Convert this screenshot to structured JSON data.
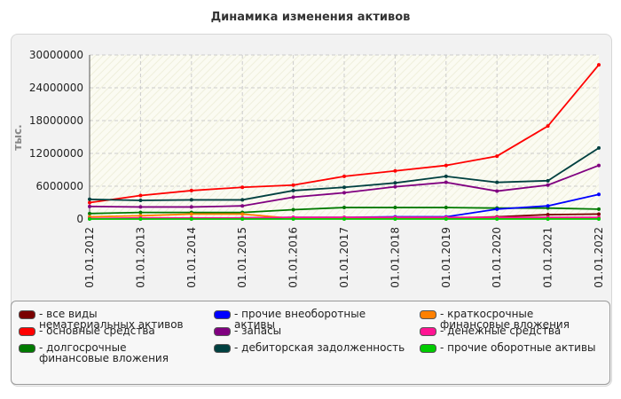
{
  "chart_data": {
    "type": "line",
    "title": "Динамика изменения активов",
    "ylabel": "тыс.",
    "xlabel": "",
    "ylim": [
      0,
      30000000
    ],
    "yticks": [
      "30000000",
      "24000000",
      "18000000",
      "12000000",
      "6000000",
      "0"
    ],
    "ytick_values": [
      30000000,
      24000000,
      18000000,
      12000000,
      6000000,
      0
    ],
    "categories": [
      "01.01.2012",
      "01.01.2013",
      "01.01.2014",
      "01.01.2015",
      "01.01.2016",
      "01.01.2017",
      "01.01.2018",
      "01.01.2019",
      "01.01.2020",
      "01.01.2021",
      "01.01.2022"
    ],
    "grid": true,
    "legend_position": "bottom",
    "series": [
      {
        "name": "все виды нематериальных активов",
        "color": "#7a0000",
        "values": [
          50000,
          50000,
          50000,
          50000,
          60000,
          60000,
          80000,
          150000,
          400000,
          800000,
          900000
        ]
      },
      {
        "name": "основные средства",
        "color": "#ff0000",
        "values": [
          3000000,
          4300000,
          5200000,
          5800000,
          6200000,
          7800000,
          8800000,
          9800000,
          11500000,
          17000000,
          28200000
        ]
      },
      {
        "name": "долгосрочные финансовые вложения",
        "color": "#007a00",
        "values": [
          1000000,
          1200000,
          1200000,
          1200000,
          1700000,
          2100000,
          2100000,
          2100000,
          2000000,
          2000000,
          1800000
        ]
      },
      {
        "name": "прочие внеоборотные активы",
        "color": "#0000ff",
        "values": [
          100000,
          100000,
          100000,
          200000,
          300000,
          300000,
          400000,
          400000,
          1800000,
          2400000,
          4500000
        ]
      },
      {
        "name": "запасы",
        "color": "#800080",
        "values": [
          2300000,
          2200000,
          2200000,
          2400000,
          4000000,
          4800000,
          5900000,
          6700000,
          5100000,
          6200000,
          9800000
        ]
      },
      {
        "name": "дебиторская задолженность",
        "color": "#004040",
        "values": [
          3600000,
          3400000,
          3500000,
          3500000,
          5200000,
          5800000,
          6600000,
          7800000,
          6700000,
          7000000,
          13000000
        ]
      },
      {
        "name": "краткосрочные финансовые вложения",
        "color": "#ff8000",
        "values": [
          400000,
          600000,
          900000,
          900000,
          100000,
          100000,
          100000,
          100000,
          100000,
          100000,
          100000
        ]
      },
      {
        "name": "денежные средства",
        "color": "#ff1493",
        "values": [
          100000,
          200000,
          200000,
          200000,
          300000,
          300000,
          300000,
          300000,
          300000,
          300000,
          300000
        ]
      },
      {
        "name": "прочие оборотные активы",
        "color": "#00cc00",
        "values": [
          0,
          0,
          0,
          0,
          0,
          0,
          0,
          0,
          0,
          0,
          0
        ]
      }
    ]
  },
  "legend": {
    "items": [
      {
        "label": "- все виды нематериальных активов",
        "color": "#7a0000"
      },
      {
        "label": "- прочие внеоборотные активы",
        "color": "#0000ff"
      },
      {
        "label": "- краткосрочные финансовые вложения",
        "color": "#ff8000"
      },
      {
        "label": "- основные средства",
        "color": "#ff0000"
      },
      {
        "label": "- запасы",
        "color": "#800080"
      },
      {
        "label": "- денежные средства",
        "color": "#ff1493"
      },
      {
        "label": "- долгосрочные финансовые вложения",
        "color": "#007a00"
      },
      {
        "label": "- дебиторская задолженность",
        "color": "#004040"
      },
      {
        "label": "- прочие оборотные активы",
        "color": "#00cc00"
      }
    ]
  }
}
